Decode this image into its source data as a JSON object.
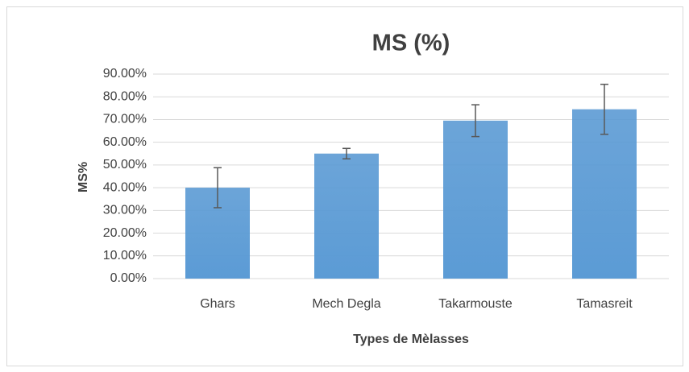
{
  "chart_data": {
    "type": "bar",
    "title": "MS (%)",
    "x_label": "Types de Mèlasses",
    "y_label": "MS%",
    "categories": [
      "Ghars",
      "Mech Degla",
      "Takarmouste",
      "Tamasreit"
    ],
    "values": [
      40,
      55,
      69.5,
      74.5
    ],
    "errors": [
      8.8,
      2.3,
      7,
      11
    ],
    "color": "#5b9bd5",
    "error_color": "#595959",
    "ylim": [
      0,
      90
    ],
    "yticks": [
      {
        "value": 0,
        "label": "0.00%"
      },
      {
        "value": 10,
        "label": "10.00%"
      },
      {
        "value": 20,
        "label": "20.00%"
      },
      {
        "value": 30,
        "label": "30.00%"
      },
      {
        "value": 40,
        "label": "40.00%"
      },
      {
        "value": 50,
        "label": "50.00%"
      },
      {
        "value": 60,
        "label": "60.00%"
      },
      {
        "value": 70,
        "label": "70.00%"
      },
      {
        "value": 80,
        "label": "80.00%"
      },
      {
        "value": 90,
        "label": "90.00%"
      }
    ],
    "grid": true
  }
}
